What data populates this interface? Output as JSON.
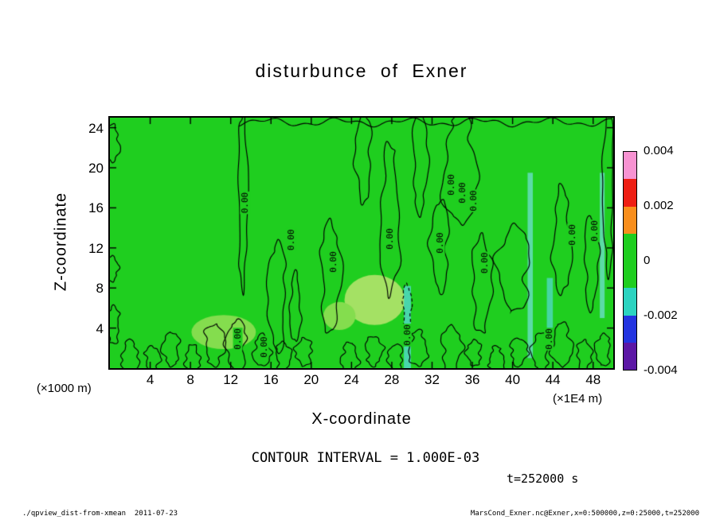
{
  "footer": {
    "left": "./qpview_dist-from-xmean  2011-07-23",
    "right": "MarsCond_Exner.nc@Exner,x=0:500000,z=0:25000,t=252000"
  },
  "chart_data": {
    "type": "contour",
    "title": "disturbunce of Exner",
    "xlabel": "X-coordinate",
    "zlabel": "Z-coordinate",
    "x_unit": "(×1E4 m)",
    "z_unit": "(×1000 m)",
    "x_range": [
      0,
      50
    ],
    "z_range": [
      0,
      25
    ],
    "x_ticks": [
      4,
      8,
      12,
      16,
      20,
      24,
      28,
      32,
      36,
      40,
      44,
      48
    ],
    "z_ticks": [
      4,
      8,
      12,
      16,
      20,
      24
    ],
    "contour_interval": 0.001,
    "contour_interval_label": "CONTOUR INTERVAL = 1.000E-03",
    "time_label": "t=252000 s",
    "contour_level_label": "0.00",
    "field_color": "#1fce1f",
    "colorbar": {
      "min": -0.004,
      "max": 0.004,
      "tick_labels": [
        "0.004",
        "0.002",
        "0",
        "-0.002",
        "-0.004"
      ],
      "segment_colors_top_to_bottom": [
        "#f793d2",
        "#ee1f14",
        "#f98f1c",
        "#1fce1f",
        "#1fce1f",
        "#2cd3c0",
        "#2334e0",
        "#5c17a5"
      ]
    },
    "zero_contour_blobs_format": "[x_center, z_bottom, z_top, half_width, seed]",
    "zero_contour_blobs": [
      [
        13.2,
        7.8,
        25.6,
        0.45,
        1
      ],
      [
        16.6,
        1.6,
        12.6,
        0.85,
        2
      ],
      [
        18.4,
        2.6,
        9.6,
        0.5,
        3
      ],
      [
        21.9,
        3.4,
        14.6,
        0.95,
        4
      ],
      [
        25.2,
        16.4,
        25.6,
        0.75,
        5
      ],
      [
        27.8,
        7.4,
        22.6,
        0.9,
        6
      ],
      [
        30.8,
        15.4,
        25.6,
        0.7,
        7
      ],
      [
        32.8,
        7.6,
        16.8,
        0.85,
        8
      ],
      [
        34.8,
        14.4,
        25.6,
        1.6,
        9
      ],
      [
        36.9,
        3.4,
        13.2,
        0.95,
        10
      ],
      [
        40.2,
        5.6,
        14.2,
        1.5,
        11
      ],
      [
        44.9,
        7.4,
        18.2,
        0.85,
        12
      ],
      [
        47.8,
        5.8,
        15.2,
        0.65,
        13
      ],
      [
        49.5,
        9.4,
        25.6,
        0.5,
        14
      ],
      [
        0.2,
        20.6,
        24.4,
        0.7,
        15
      ],
      [
        0.2,
        8.6,
        11.2,
        0.55,
        16
      ],
      [
        0.3,
        2.4,
        6.2,
        0.65,
        17
      ],
      [
        2.0,
        -0.4,
        2.8,
        0.8,
        18
      ],
      [
        4.2,
        -0.4,
        2.2,
        0.7,
        19
      ],
      [
        6.1,
        0.2,
        3.6,
        0.8,
        20
      ],
      [
        8.2,
        -0.4,
        2.4,
        0.7,
        21
      ],
      [
        10.4,
        0.2,
        4.4,
        0.95,
        22
      ],
      [
        12.6,
        -0.4,
        4.8,
        0.95,
        23
      ],
      [
        15.1,
        0.2,
        3.4,
        0.8,
        24
      ],
      [
        17.2,
        -0.4,
        2.6,
        0.7,
        25
      ],
      [
        19.3,
        0.2,
        3.0,
        0.8,
        26
      ],
      [
        23.8,
        -0.4,
        2.6,
        0.8,
        27
      ],
      [
        26.2,
        0.2,
        3.2,
        0.8,
        28
      ],
      [
        28.4,
        -0.4,
        2.4,
        0.7,
        29
      ],
      [
        30.6,
        0.2,
        3.8,
        0.85,
        30
      ],
      [
        33.9,
        -0.4,
        4.2,
        0.95,
        31
      ],
      [
        36.2,
        0.2,
        2.8,
        0.7,
        32
      ],
      [
        38.4,
        -0.4,
        2.2,
        0.7,
        33
      ],
      [
        40.6,
        0.2,
        3.0,
        0.8,
        34
      ],
      [
        42.8,
        -0.4,
        3.6,
        0.8,
        35
      ],
      [
        44.9,
        0.2,
        4.6,
        0.95,
        36
      ],
      [
        47.1,
        -0.4,
        2.8,
        0.7,
        37
      ],
      [
        49.0,
        0.2,
        3.4,
        0.7,
        38
      ]
    ],
    "dashed_contours": [
      [
        29.5,
        3.6,
        8.4,
        0.4,
        40
      ]
    ],
    "top_contour": {
      "x_start": 12.8,
      "z": 24.55
    },
    "contour_labels_format": "[x, z] position of rotated 0.00 label",
    "contour_labels": [
      [
        13.4,
        16.5
      ],
      [
        18.0,
        12.8
      ],
      [
        22.2,
        10.6
      ],
      [
        27.8,
        12.9
      ],
      [
        32.8,
        12.5
      ],
      [
        33.9,
        18.3
      ],
      [
        35.0,
        17.5
      ],
      [
        36.1,
        16.7
      ],
      [
        37.2,
        10.5
      ],
      [
        45.9,
        13.3
      ],
      [
        48.1,
        13.7
      ],
      [
        12.7,
        2.9
      ],
      [
        15.3,
        2.1
      ],
      [
        29.5,
        3.3
      ],
      [
        43.6,
        2.9
      ]
    ],
    "pale_patches_format": "[x, z, rx, rz, color]",
    "pale_patches": [
      [
        11.3,
        3.6,
        3.2,
        1.7,
        "#84dd4e"
      ],
      [
        26.3,
        6.8,
        3.0,
        2.5,
        "#a4e164"
      ],
      [
        22.8,
        5.2,
        1.6,
        1.4,
        "#84dd4e"
      ]
    ],
    "cyan_streaks_format": "[x, z_bottom, z_top, half_width, color, alpha]",
    "cyan_streaks": [
      [
        29.55,
        -0.5,
        8.2,
        0.35,
        "#4ed7ba",
        0.9
      ],
      [
        41.75,
        1.0,
        19.5,
        0.26,
        "#6adec8",
        0.8
      ],
      [
        43.7,
        2.0,
        9.0,
        0.3,
        "#4ed7ba",
        0.85
      ],
      [
        48.9,
        5.0,
        19.5,
        0.24,
        "#6adec8",
        0.8
      ]
    ]
  }
}
